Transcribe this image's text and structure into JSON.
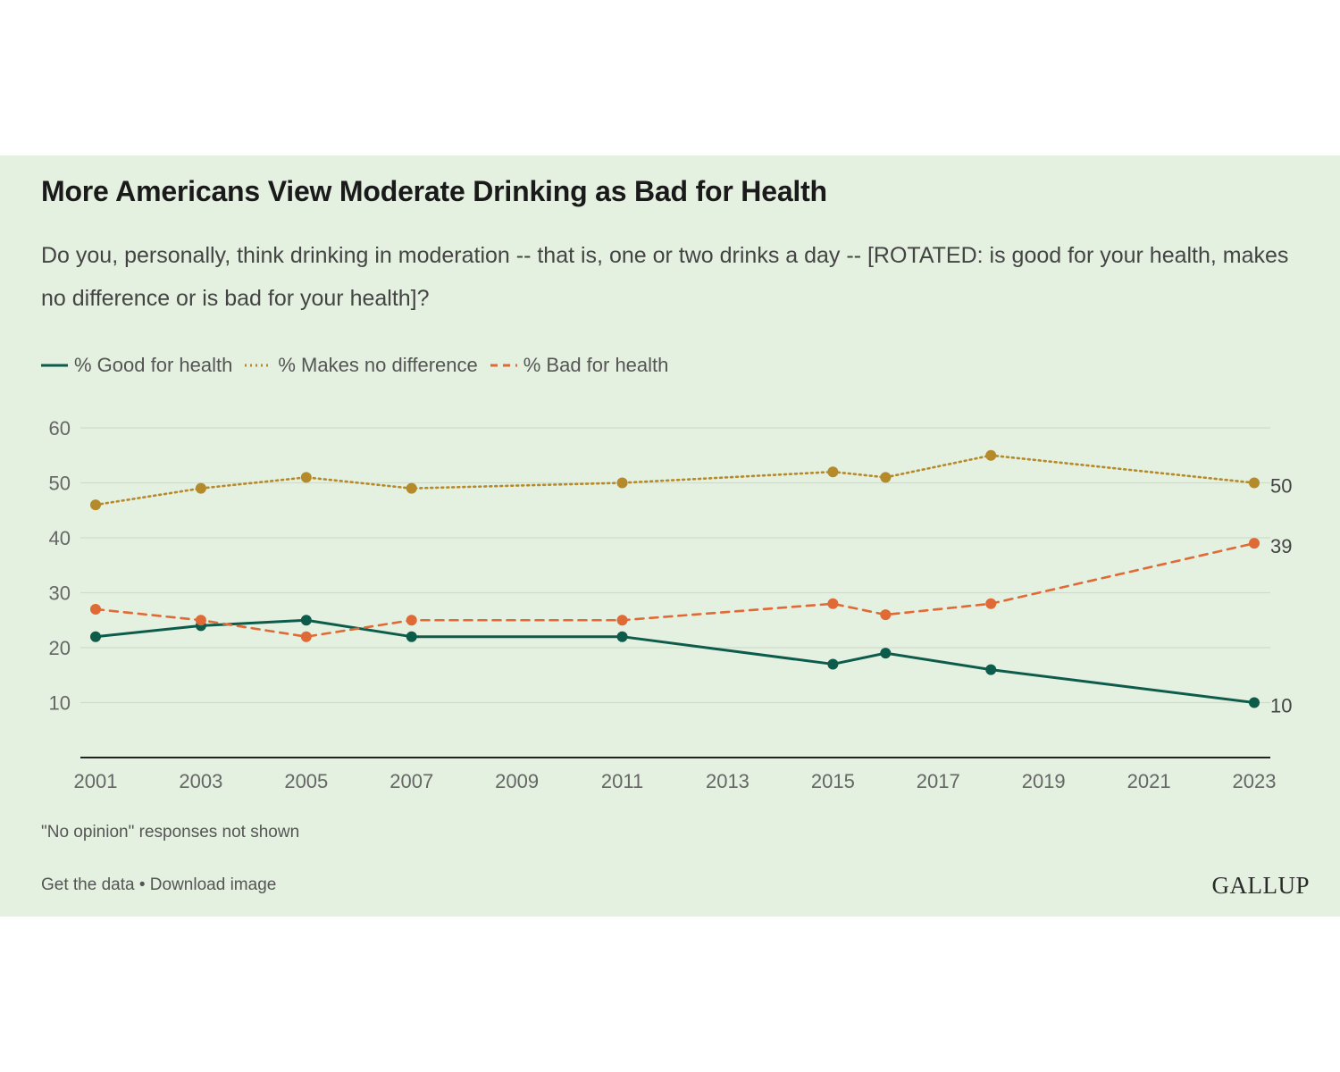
{
  "chart_data": {
    "type": "line",
    "title": "More Americans View Moderate Drinking as Bad for Health",
    "subtitle": "Do you, personally, think drinking in moderation -- that is, one or two drinks a day -- [ROTATED: is good for your health, makes no difference or is bad for your health]?",
    "xlabel": "",
    "ylabel": "",
    "x_ticks": [
      "2001",
      "2003",
      "2005",
      "2007",
      "2009",
      "2011",
      "2013",
      "2015",
      "2017",
      "2019",
      "2021",
      "2023"
    ],
    "y_ticks": [
      10,
      20,
      30,
      40,
      50,
      60
    ],
    "xlim": [
      2001,
      2023
    ],
    "ylim": [
      0,
      60
    ],
    "grid": true,
    "legend_position": "top-left",
    "series": [
      {
        "name": "% Good for health",
        "color": "#0d5c4b",
        "style": "solid",
        "points": [
          [
            2001,
            22
          ],
          [
            2003,
            24
          ],
          [
            2005,
            25
          ],
          [
            2007,
            22
          ],
          [
            2011,
            22
          ],
          [
            2015,
            17
          ],
          [
            2016,
            19
          ],
          [
            2018,
            16
          ],
          [
            2023,
            10
          ]
        ],
        "end_label": "10"
      },
      {
        "name": "% Makes no difference",
        "color": "#b58a2a",
        "style": "dotted",
        "points": [
          [
            2001,
            46
          ],
          [
            2003,
            49
          ],
          [
            2005,
            51
          ],
          [
            2007,
            49
          ],
          [
            2011,
            50
          ],
          [
            2015,
            52
          ],
          [
            2016,
            51
          ],
          [
            2018,
            55
          ],
          [
            2023,
            50
          ]
        ],
        "end_label": "50"
      },
      {
        "name": "% Bad for health",
        "color": "#e06a35",
        "style": "dashed",
        "points": [
          [
            2001,
            27
          ],
          [
            2003,
            25
          ],
          [
            2005,
            22
          ],
          [
            2007,
            25
          ],
          [
            2011,
            25
          ],
          [
            2015,
            28
          ],
          [
            2016,
            26
          ],
          [
            2018,
            28
          ],
          [
            2023,
            39
          ]
        ],
        "end_label": "39"
      }
    ],
    "footnote": "\"No opinion\" responses not shown"
  },
  "footer": {
    "get_data": "Get the data",
    "separator": "•",
    "download": "Download image",
    "brand": "GALLUP"
  },
  "colors": {
    "background": "#e4f0e0",
    "good": "#0d5c4b",
    "no_difference": "#b58a2a",
    "bad": "#e06a35"
  }
}
